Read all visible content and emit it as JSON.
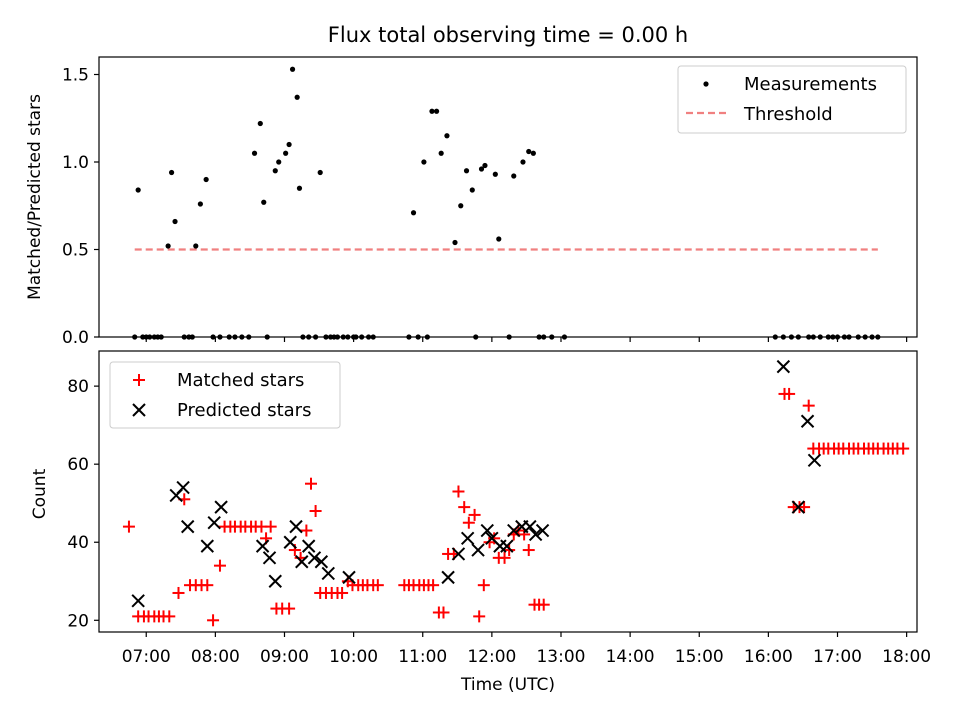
{
  "chart_data": [
    {
      "type": "scatter",
      "title": "Flux total observing time = 0.00 h",
      "ylabel": "Matched/Predicted stars",
      "ylim": [
        0,
        1.6
      ],
      "yticks": [
        "0.0",
        "0.5",
        "1.0",
        "1.5"
      ],
      "legend_position": "top-right",
      "grid": false,
      "series": [
        {
          "name": "Measurements",
          "kind": "points",
          "color": "#000000",
          "x": [
            "06:50",
            "06:53",
            "06:57",
            "07:00",
            "07:03",
            "07:07",
            "07:10",
            "07:13",
            "07:19",
            "07:22",
            "07:25",
            "07:33",
            "07:37",
            "07:40",
            "07:43",
            "07:47",
            "07:52",
            "07:58",
            "08:04",
            "08:12",
            "08:17",
            "08:23",
            "08:29",
            "08:34",
            "08:39",
            "08:42",
            "08:45",
            "08:52",
            "08:55",
            "09:01",
            "09:04",
            "09:07",
            "09:11",
            "09:13",
            "09:16",
            "09:21",
            "09:27",
            "09:31",
            "09:36",
            "09:40",
            "09:43",
            "09:46",
            "09:51",
            "09:55",
            "10:00",
            "10:02",
            "10:07",
            "10:13",
            "10:17",
            "10:48",
            "10:52",
            "10:56",
            "11:01",
            "11:04",
            "11:08",
            "11:12",
            "11:16",
            "11:21",
            "11:28",
            "11:33",
            "11:38",
            "11:43",
            "11:46",
            "11:51",
            "11:54",
            "12:03",
            "12:06",
            "12:15",
            "12:19",
            "12:27",
            "12:32",
            "12:36",
            "12:41",
            "12:45",
            "12:52",
            "13:03",
            "16:06",
            "16:13",
            "16:20",
            "16:26",
            "16:35",
            "16:39",
            "16:45",
            "16:52",
            "16:56",
            "17:00",
            "17:06",
            "17:10",
            "17:18",
            "17:24",
            "17:30",
            "17:35"
          ],
          "y": [
            0.0,
            0.84,
            0.0,
            0.0,
            0.0,
            0.0,
            0.0,
            0.0,
            0.52,
            0.94,
            0.66,
            0.0,
            0.0,
            0.0,
            0.52,
            0.76,
            0.9,
            0.0,
            0.0,
            0.0,
            0.0,
            0.0,
            0.0,
            1.05,
            1.22,
            0.77,
            0.0,
            0.95,
            1.0,
            1.05,
            1.1,
            1.53,
            1.37,
            0.85,
            0.0,
            0.0,
            0.0,
            0.94,
            0.0,
            0.0,
            0.0,
            0.0,
            0.0,
            0.0,
            0.0,
            0.0,
            0.0,
            0.0,
            0.0,
            0.0,
            0.71,
            0.0,
            1.0,
            0.0,
            1.29,
            1.29,
            1.05,
            1.15,
            0.54,
            0.75,
            0.95,
            0.84,
            0.0,
            0.96,
            0.98,
            0.93,
            0.56,
            0.0,
            0.92,
            1.0,
            1.06,
            1.05,
            0.0,
            0.0,
            0.0,
            0.0,
            0.0,
            0.0,
            0.0,
            0.0,
            0.0,
            0.0,
            0.0,
            0.0,
            0.0,
            0.0,
            0.0,
            0.0,
            0.0,
            0.0,
            0.0,
            0.0
          ]
        },
        {
          "name": "Threshold",
          "kind": "dashed-line",
          "color": "#f08080",
          "x": [
            "06:50",
            "17:35"
          ],
          "y": [
            0.5,
            0.5
          ]
        }
      ]
    },
    {
      "type": "scatter",
      "title": "",
      "xlabel": "Time (UTC)",
      "ylabel": "Count",
      "ylim": [
        17,
        89
      ],
      "yticks": [
        "20",
        "40",
        "60",
        "80"
      ],
      "xlim": [
        "06:19",
        "18:09"
      ],
      "xticks": [
        "07:00",
        "08:00",
        "09:00",
        "10:00",
        "11:00",
        "12:00",
        "13:00",
        "14:00",
        "15:00",
        "16:00",
        "17:00",
        "18:00"
      ],
      "legend_position": "top-left",
      "grid": false,
      "series": [
        {
          "name": "Matched stars",
          "kind": "plus",
          "color": "#ff0000",
          "x": [
            "06:45",
            "06:53",
            "06:58",
            "07:02",
            "07:07",
            "07:11",
            "07:15",
            "07:20",
            "07:28",
            "07:33",
            "07:38",
            "07:43",
            "07:48",
            "07:53",
            "07:58",
            "08:04",
            "08:08",
            "08:13",
            "08:17",
            "08:22",
            "08:26",
            "08:31",
            "08:35",
            "08:40",
            "08:44",
            "08:48",
            "08:53",
            "08:58",
            "09:04",
            "09:09",
            "09:14",
            "09:19",
            "09:23",
            "09:27",
            "09:31",
            "09:36",
            "09:41",
            "09:46",
            "09:50",
            "09:55",
            "09:59",
            "10:04",
            "10:08",
            "10:12",
            "10:17",
            "10:21",
            "10:44",
            "10:48",
            "10:52",
            "10:57",
            "11:01",
            "11:05",
            "11:09",
            "11:14",
            "11:18",
            "11:22",
            "11:27",
            "11:31",
            "11:36",
            "11:40",
            "11:45",
            "11:49",
            "11:53",
            "11:58",
            "12:02",
            "12:06",
            "12:11",
            "12:15",
            "12:19",
            "12:23",
            "12:28",
            "12:32",
            "12:37",
            "12:41",
            "12:45",
            "16:14",
            "16:18",
            "16:22",
            "16:27",
            "16:31",
            "16:35",
            "16:39",
            "16:44",
            "16:48",
            "16:52",
            "16:57",
            "17:01",
            "17:05",
            "17:10",
            "17:14",
            "17:18",
            "17:23",
            "17:27",
            "17:31",
            "17:35",
            "17:40",
            "17:44",
            "17:48",
            "17:52",
            "17:57"
          ],
          "y": [
            44,
            21,
            21,
            21,
            21,
            21,
            21,
            21,
            27,
            51,
            29,
            29,
            29,
            29,
            20,
            34,
            44,
            44,
            44,
            44,
            44,
            44,
            44,
            44,
            41,
            44,
            23,
            23,
            23,
            38,
            36,
            43,
            55,
            48,
            27,
            27,
            27,
            27,
            27,
            30,
            29,
            29,
            29,
            29,
            29,
            29,
            29,
            29,
            29,
            29,
            29,
            29,
            29,
            22,
            22,
            37,
            37,
            53,
            49,
            45,
            47,
            21,
            29,
            40,
            41,
            36,
            36,
            38,
            42,
            43,
            42,
            38,
            24,
            24,
            24,
            78,
            78,
            49,
            49,
            49,
            75,
            64,
            64,
            64,
            64,
            64,
            64,
            64,
            64,
            64,
            64,
            64,
            64,
            64,
            64,
            64,
            64,
            64,
            64,
            64
          ],
          "y_note": "read from plot"
        },
        {
          "name": "Predicted stars",
          "kind": "x",
          "color": "#000000",
          "x": [
            "06:53",
            "07:26",
            "07:32",
            "07:36",
            "07:53",
            "07:59",
            "08:05",
            "08:41",
            "08:47",
            "08:52",
            "09:05",
            "09:10",
            "09:15",
            "09:21",
            "09:26",
            "09:32",
            "09:38",
            "09:56",
            "11:22",
            "11:31",
            "11:39",
            "11:48",
            "11:56",
            "12:00",
            "12:07",
            "12:13",
            "12:19",
            "12:26",
            "12:33",
            "12:38",
            "12:44",
            "16:13",
            "16:26",
            "16:34",
            "16:40"
          ],
          "y": [
            25,
            52,
            54,
            44,
            39,
            45,
            49,
            39,
            36,
            30,
            40,
            44,
            35,
            39,
            36,
            35,
            32,
            31,
            31,
            37,
            41,
            38,
            43,
            41,
            39,
            39,
            43,
            44,
            44,
            42,
            43,
            85,
            49,
            71,
            61
          ]
        }
      ]
    }
  ]
}
